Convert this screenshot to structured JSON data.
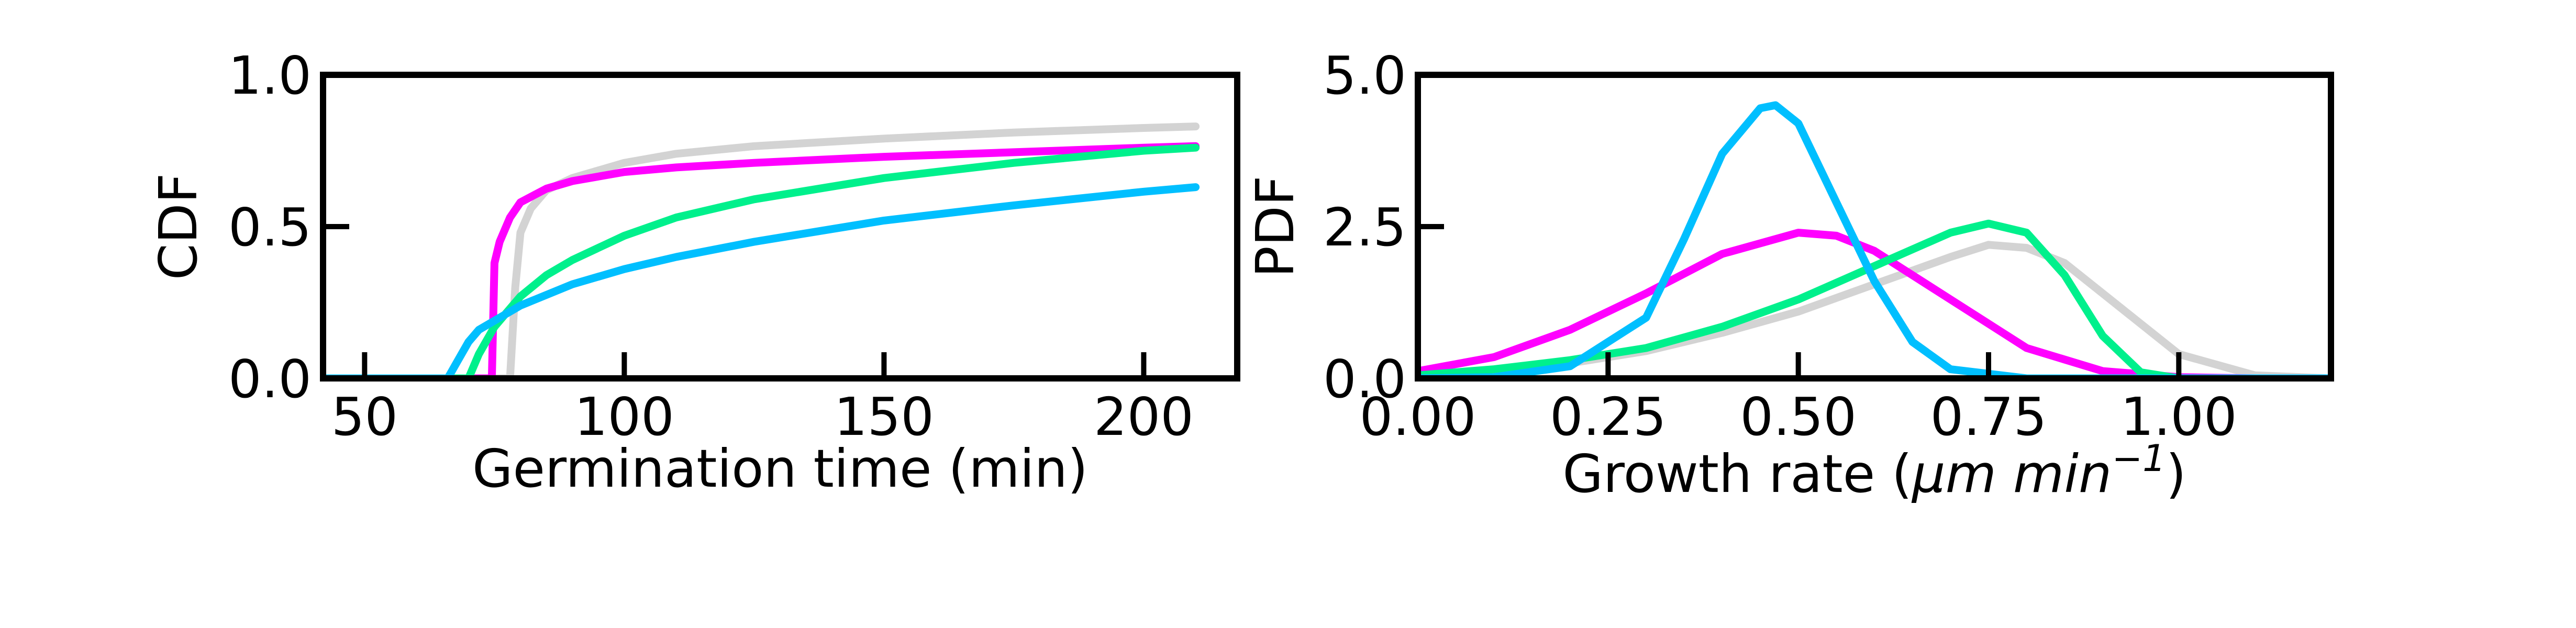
{
  "chart_data": [
    {
      "type": "line",
      "title": "",
      "xlabel": "Germination time (min)",
      "ylabel": "CDF",
      "xlim": [
        42,
        218
      ],
      "ylim": [
        0.0,
        1.0
      ],
      "xticks": [
        50,
        100,
        150,
        200
      ],
      "xtick_labels": [
        "50",
        "100",
        "150",
        "200"
      ],
      "yticks": [
        0.0,
        0.5,
        1.0
      ],
      "ytick_labels": [
        "0.0",
        "0.5",
        "1.0"
      ],
      "grid": false,
      "legend": "none",
      "series": [
        {
          "color": "#d3d3d3",
          "x": [
            42,
            78,
            79,
            80,
            82,
            85,
            90,
            100,
            110,
            125,
            150,
            175,
            200,
            210
          ],
          "y": [
            0.0,
            0.0,
            0.3,
            0.48,
            0.56,
            0.62,
            0.66,
            0.71,
            0.74,
            0.765,
            0.79,
            0.81,
            0.825,
            0.83
          ]
        },
        {
          "color": "#ff00ff",
          "x": [
            42,
            74.5,
            75,
            76,
            78,
            80,
            85,
            90,
            100,
            110,
            125,
            150,
            175,
            200,
            210
          ],
          "y": [
            0.0,
            0.0,
            0.38,
            0.45,
            0.53,
            0.58,
            0.625,
            0.65,
            0.68,
            0.695,
            0.71,
            0.73,
            0.745,
            0.76,
            0.765
          ]
        },
        {
          "color": "#00f08c",
          "x": [
            42,
            70,
            72,
            75,
            80,
            85,
            90,
            100,
            110,
            125,
            150,
            175,
            200,
            210
          ],
          "y": [
            0.0,
            0.0,
            0.08,
            0.17,
            0.27,
            0.34,
            0.39,
            0.47,
            0.53,
            0.59,
            0.66,
            0.71,
            0.75,
            0.76
          ]
        },
        {
          "color": "#00bfff",
          "x": [
            42,
            66,
            68,
            70,
            72,
            75,
            80,
            90,
            100,
            110,
            125,
            150,
            175,
            200,
            210
          ],
          "y": [
            0.0,
            0.0,
            0.06,
            0.12,
            0.16,
            0.19,
            0.24,
            0.31,
            0.36,
            0.4,
            0.45,
            0.52,
            0.57,
            0.615,
            0.63
          ]
        }
      ]
    },
    {
      "type": "line",
      "title": "",
      "xlabel": "Growth rate (μm min⁻¹)",
      "xlabel_parts": [
        "Growth rate (",
        "μm min",
        "−1",
        ")"
      ],
      "ylabel": "PDF",
      "xlim": [
        0.0,
        1.2
      ],
      "ylim": [
        0.0,
        5.0
      ],
      "xticks": [
        0.0,
        0.25,
        0.5,
        0.75,
        1.0
      ],
      "xtick_labels": [
        "0.00",
        "0.25",
        "0.50",
        "0.75",
        "1.00"
      ],
      "yticks": [
        0.0,
        2.5,
        5.0
      ],
      "ytick_labels": [
        "0.0",
        "2.5",
        "5.0"
      ],
      "grid": false,
      "legend": "none",
      "series": [
        {
          "color": "#d3d3d3",
          "x": [
            0.0,
            0.1,
            0.2,
            0.3,
            0.4,
            0.5,
            0.6,
            0.7,
            0.75,
            0.8,
            0.85,
            0.9,
            1.0,
            1.1,
            1.2
          ],
          "y": [
            0.0,
            0.1,
            0.25,
            0.45,
            0.75,
            1.1,
            1.55,
            2.0,
            2.2,
            2.15,
            1.9,
            1.4,
            0.4,
            0.05,
            0.0
          ]
        },
        {
          "color": "#ff00ff",
          "x": [
            0.0,
            0.1,
            0.2,
            0.3,
            0.4,
            0.5,
            0.55,
            0.6,
            0.7,
            0.8,
            0.9,
            1.0,
            1.1,
            1.2
          ],
          "y": [
            0.12,
            0.35,
            0.8,
            1.4,
            2.05,
            2.4,
            2.35,
            2.1,
            1.3,
            0.5,
            0.12,
            0.02,
            0.0,
            0.0
          ]
        },
        {
          "color": "#00f08c",
          "x": [
            0.0,
            0.1,
            0.2,
            0.3,
            0.4,
            0.5,
            0.6,
            0.7,
            0.75,
            0.8,
            0.85,
            0.9,
            0.95,
            1.0,
            1.2
          ],
          "y": [
            0.05,
            0.15,
            0.3,
            0.5,
            0.85,
            1.3,
            1.85,
            2.4,
            2.55,
            2.4,
            1.7,
            0.7,
            0.1,
            0.0,
            0.0
          ]
        },
        {
          "color": "#00bfff",
          "x": [
            0.0,
            0.1,
            0.2,
            0.3,
            0.35,
            0.4,
            0.45,
            0.47,
            0.5,
            0.55,
            0.6,
            0.65,
            0.7,
            0.8,
            0.9,
            1.2
          ],
          "y": [
            0.0,
            0.02,
            0.2,
            1.0,
            2.3,
            3.7,
            4.45,
            4.5,
            4.2,
            2.9,
            1.6,
            0.6,
            0.15,
            0.0,
            0.0,
            0.0
          ]
        }
      ]
    }
  ]
}
